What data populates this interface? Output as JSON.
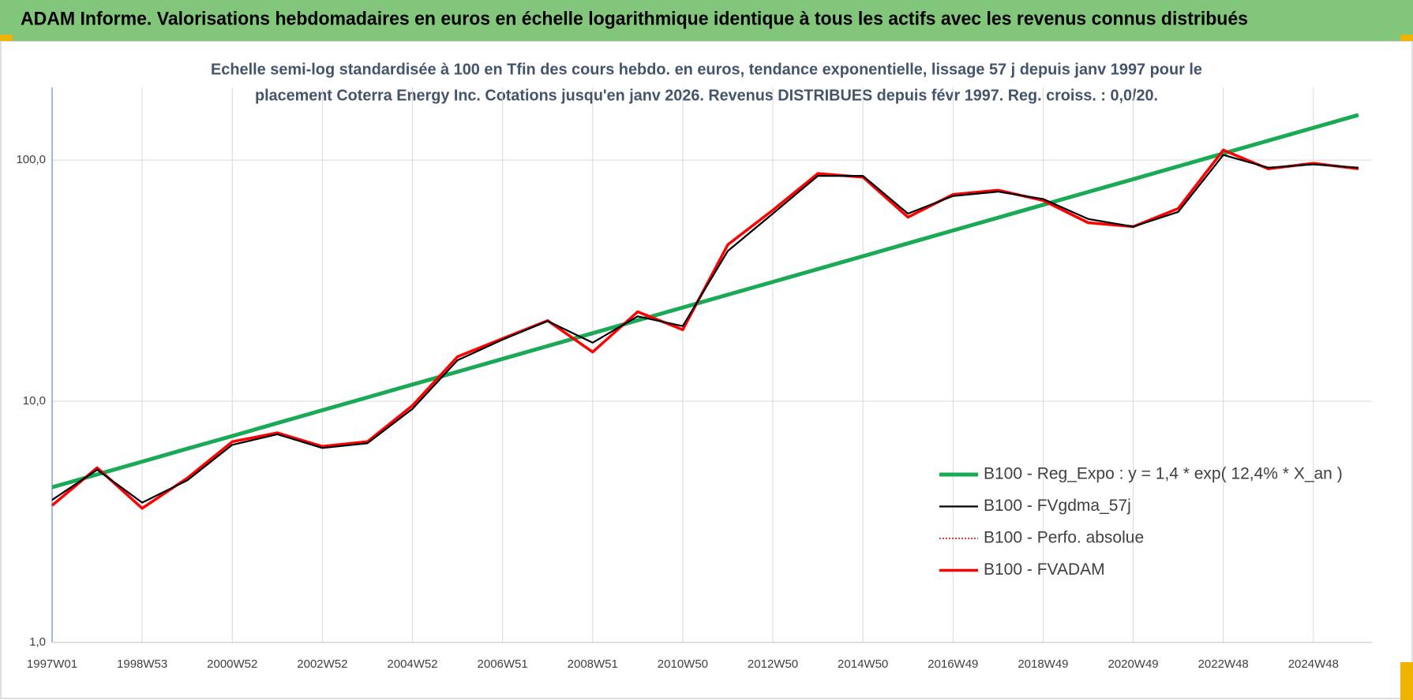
{
  "chart_data": {
    "type": "line",
    "title": "ADAM Informe. Valorisations hebdomadaires en euros en échelle logarithmique identique à tous les actifs avec les revenus connus distribués",
    "subtitle": [
      "Echelle semi-log standardisée à 100 en Tfin des cours hebdo. en euros, tendance exponentielle, lissage 57 j depuis janv 1997 pour le",
      "placement Coterra Energy Inc. Cotations jusqu'en janv 2026. Revenus DISTRIBUES depuis févr 1997. Reg. croiss. : 0,0/20."
    ],
    "categories": [
      "1997W01",
      null,
      "1998W53",
      null,
      "2000W52",
      null,
      "2002W52",
      null,
      "2004W52",
      null,
      "2006W51",
      null,
      "2008W51",
      null,
      "2010W50",
      null,
      "2012W50",
      null,
      "2014W50",
      null,
      "2016W49",
      null,
      "2018W49",
      null,
      "2020W49",
      null,
      "2022W48",
      null,
      "2024W48",
      null
    ],
    "series": [
      {
        "name": "B100 - Reg_Expo : y = 1,4 * exp( 12,4% *  X_an )",
        "color": "#1aaa55",
        "style": "solid",
        "values": [
          4.4,
          4.97,
          5.62,
          6.36,
          7.18,
          8.12,
          9.18,
          10.38,
          11.73,
          13.26,
          14.99,
          16.94,
          19.15,
          21.65,
          24.47,
          27.66,
          31.27,
          35.35,
          39.96,
          45.17,
          51.06,
          57.72,
          65.25,
          73.76,
          83.38,
          94.25,
          106.5,
          120.4,
          136.1,
          153.9
        ]
      },
      {
        "name": "B100 - FVgdma_57j",
        "color": "#000000",
        "style": "solid",
        "values": [
          3.9,
          5.2,
          3.8,
          4.7,
          6.6,
          7.3,
          6.4,
          6.7,
          9.3,
          14.8,
          18,
          21.5,
          17.5,
          22.5,
          20.5,
          42,
          60,
          86,
          86,
          60,
          71,
          74,
          69,
          57,
          53,
          61,
          105,
          93,
          96,
          93
        ]
      },
      {
        "name": "B100 - Perfo. absolue",
        "color": "#c00000",
        "style": "dotted",
        "values": [
          3.7,
          5.3,
          3.6,
          4.8,
          6.8,
          7.4,
          6.5,
          6.8,
          9.6,
          15.3,
          18.2,
          21.6,
          16,
          23.5,
          19.8,
          44.6,
          62,
          88,
          85,
          58,
          72,
          75,
          68,
          55,
          53,
          63,
          110,
          92,
          97,
          92
        ]
      },
      {
        "name": "B100 - FVADAM",
        "color": "#ff0000",
        "style": "thick",
        "values": [
          3.7,
          5.3,
          3.6,
          4.8,
          6.8,
          7.4,
          6.5,
          6.8,
          9.6,
          15.3,
          18.2,
          21.6,
          16,
          23.5,
          19.8,
          44.6,
          62,
          88,
          85,
          58,
          72,
          75,
          68,
          55,
          53,
          63,
          110,
          92,
          97,
          92
        ]
      }
    ],
    "log_scale": true,
    "ylim": [
      1,
      200
    ],
    "yticks": [
      {
        "value": 1,
        "label": "1,0"
      },
      {
        "value": 10,
        "label": "10,0"
      },
      {
        "value": 100,
        "label": "100,0"
      }
    ],
    "grid": true,
    "legend_position": "lower right"
  }
}
